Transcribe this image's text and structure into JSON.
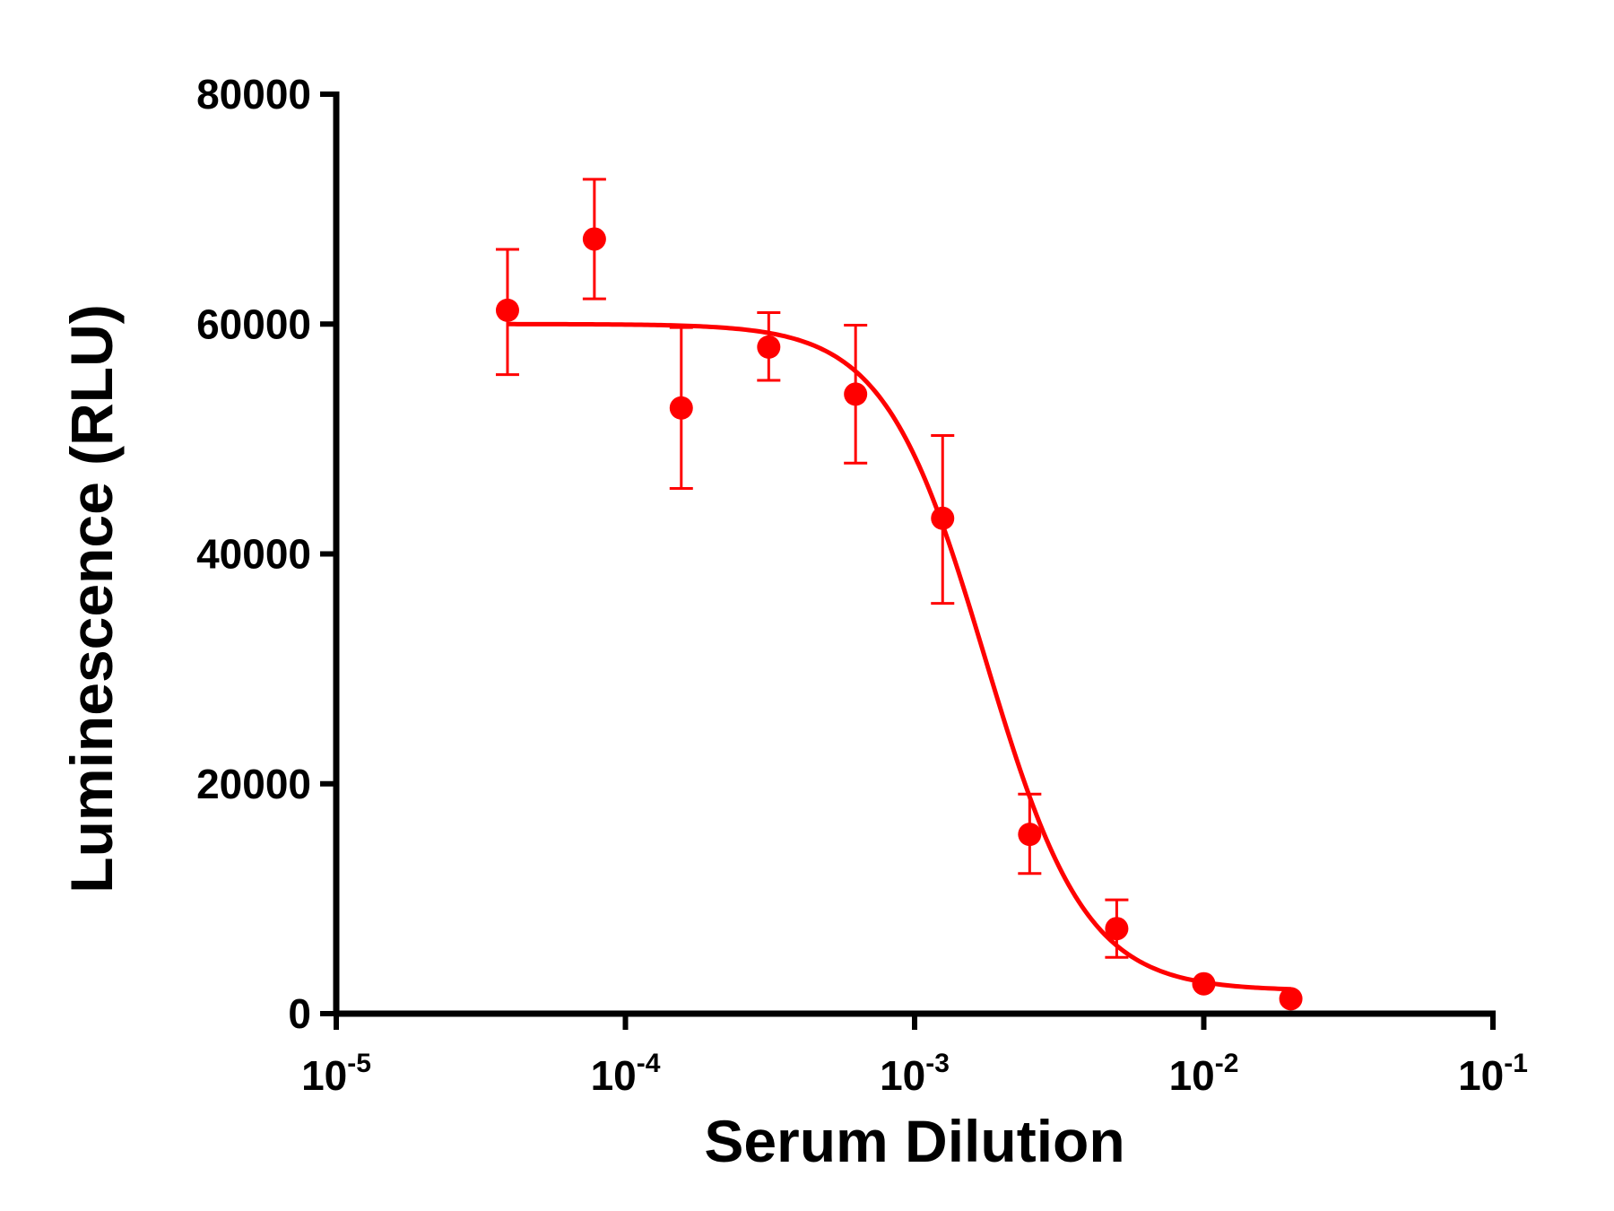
{
  "chart_data": {
    "type": "scatter",
    "title": "",
    "xlabel": "Serum Dilution",
    "ylabel": "Luminescence (RLU)",
    "x_scale": "log10",
    "xlim": [
      1e-05,
      0.1
    ],
    "ylim": [
      0,
      80000
    ],
    "x_ticks": [
      {
        "value": 1e-05,
        "base": "10",
        "exponent": "-5"
      },
      {
        "value": 0.0001,
        "base": "10",
        "exponent": "-4"
      },
      {
        "value": 0.001,
        "base": "10",
        "exponent": "-3"
      },
      {
        "value": 0.01,
        "base": "10",
        "exponent": "-2"
      },
      {
        "value": 0.1,
        "base": "10",
        "exponent": "-1"
      }
    ],
    "y_ticks": [
      {
        "value": 0,
        "label": "0"
      },
      {
        "value": 20000,
        "label": "20000"
      },
      {
        "value": 40000,
        "label": "40000"
      },
      {
        "value": 60000,
        "label": "60000"
      },
      {
        "value": 80000,
        "label": "80000"
      }
    ],
    "grid": false,
    "legend": "none",
    "color": "#ff0000",
    "points": [
      {
        "x": 3.91e-05,
        "y": 61200,
        "err_low": 55600,
        "err_high": 66500
      },
      {
        "x": 7.81e-05,
        "y": 67400,
        "err_low": 62200,
        "err_high": 72600
      },
      {
        "x": 0.000156,
        "y": 52700,
        "err_low": 45700,
        "err_high": 59700
      },
      {
        "x": 0.000313,
        "y": 58000,
        "err_low": 55100,
        "err_high": 61000
      },
      {
        "x": 0.000625,
        "y": 53900,
        "err_low": 47900,
        "err_high": 59900
      },
      {
        "x": 0.00125,
        "y": 43100,
        "err_low": 35700,
        "err_high": 50300
      },
      {
        "x": 0.0025,
        "y": 15600,
        "err_low": 12200,
        "err_high": 19100
      },
      {
        "x": 0.005,
        "y": 7400,
        "err_low": 4900,
        "err_high": 9900
      },
      {
        "x": 0.01,
        "y": 2600,
        "err_low": null,
        "err_high": null
      },
      {
        "x": 0.02,
        "y": 1300,
        "err_low": null,
        "err_high": null
      }
    ],
    "fit": {
      "model": "four-parameter logistic",
      "top": 60000,
      "bottom": 2000,
      "ic50": 0.00175,
      "hill": 2.5,
      "x_range": [
        3.91e-05,
        0.02
      ]
    }
  }
}
